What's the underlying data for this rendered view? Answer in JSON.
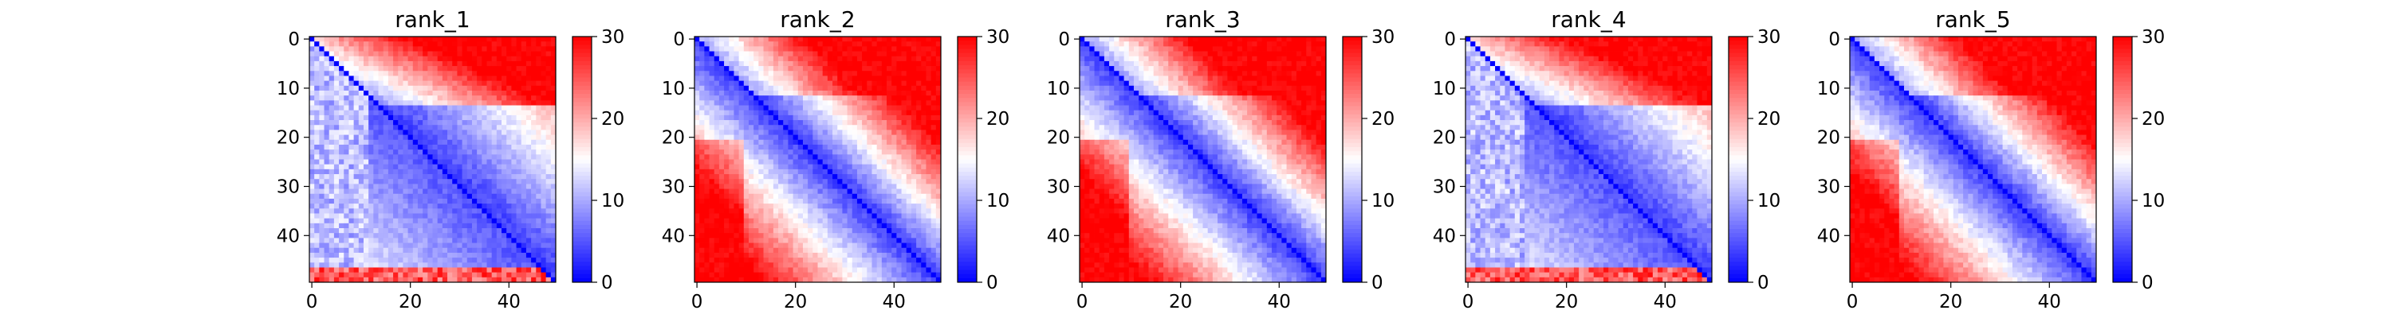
{
  "colors": {
    "low": "#0000ff",
    "mid": "#ffffff",
    "high": "#ff0000"
  },
  "chart_data": [
    {
      "type": "heatmap",
      "title": "rank_1",
      "n": 50,
      "clim": [
        0,
        30
      ],
      "xticks": [
        0,
        20,
        40
      ],
      "yticks": [
        0,
        10,
        20,
        30,
        40
      ],
      "cbar_ticks": [
        0,
        10,
        20,
        30
      ],
      "style": "near",
      "matrix": []
    },
    {
      "type": "heatmap",
      "title": "rank_2",
      "n": 50,
      "clim": [
        0,
        30
      ],
      "xticks": [
        0,
        20,
        40
      ],
      "yticks": [
        0,
        10,
        20,
        30,
        40
      ],
      "cbar_ticks": [
        0,
        10,
        20,
        30
      ],
      "style": "far",
      "matrix": []
    },
    {
      "type": "heatmap",
      "title": "rank_3",
      "n": 50,
      "clim": [
        0,
        30
      ],
      "xticks": [
        0,
        20,
        40
      ],
      "yticks": [
        0,
        10,
        20,
        30,
        40
      ],
      "cbar_ticks": [
        0,
        10,
        20,
        30
      ],
      "style": "far",
      "matrix": []
    },
    {
      "type": "heatmap",
      "title": "rank_4",
      "n": 50,
      "clim": [
        0,
        30
      ],
      "xticks": [
        0,
        20,
        40
      ],
      "yticks": [
        0,
        10,
        20,
        30,
        40
      ],
      "cbar_ticks": [
        0,
        10,
        20,
        30
      ],
      "style": "near",
      "matrix": []
    },
    {
      "type": "heatmap",
      "title": "rank_5",
      "n": 50,
      "clim": [
        0,
        30
      ],
      "xticks": [
        0,
        20,
        40
      ],
      "yticks": [
        0,
        10,
        20,
        30,
        40
      ],
      "cbar_ticks": [
        0,
        10,
        20,
        30
      ],
      "style": "far",
      "matrix": []
    }
  ]
}
